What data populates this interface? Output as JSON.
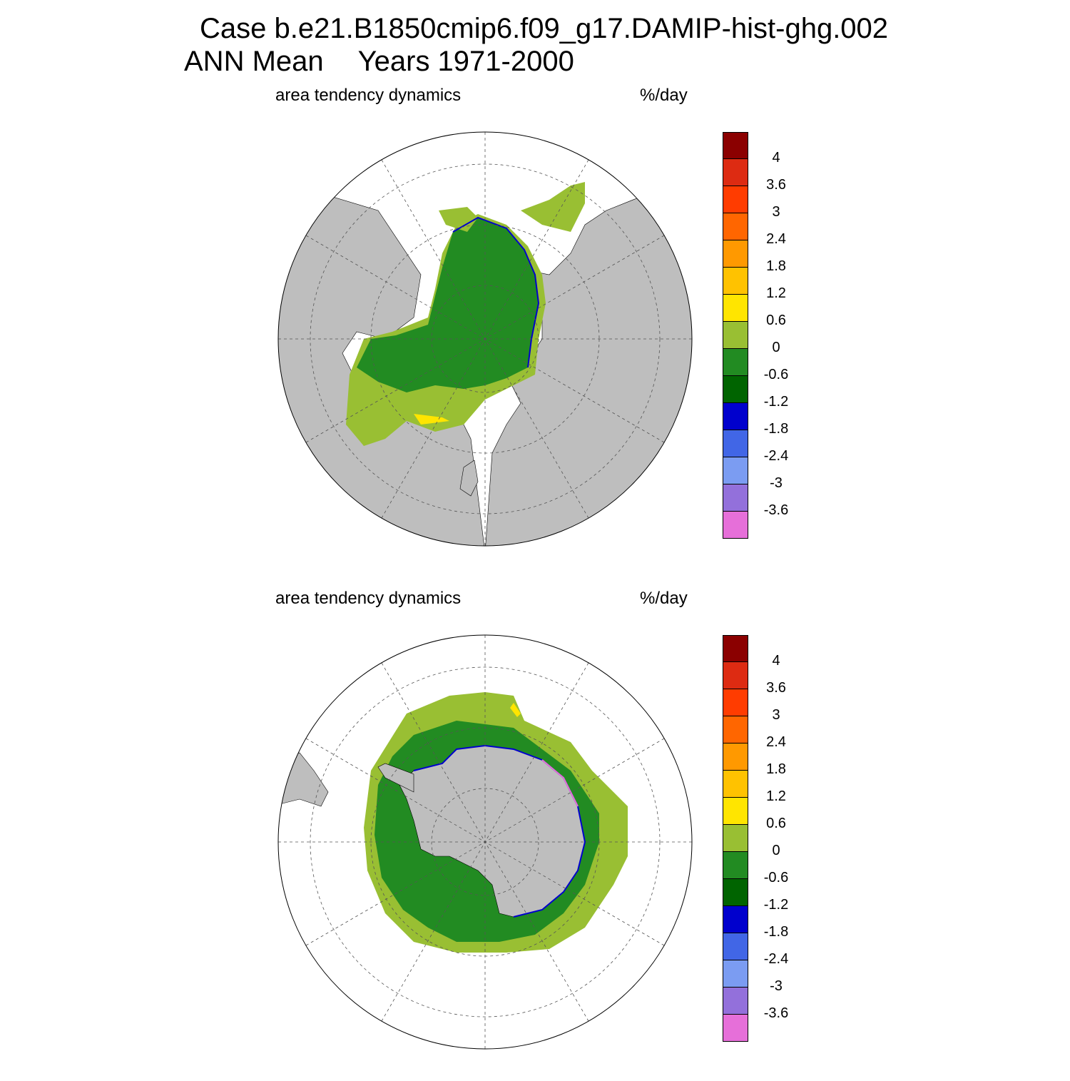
{
  "title": {
    "case_line": "Case b.e21.B1850cmip6.f09_g17.DAMIP-hist-ghg.002",
    "season": "ANN Mean",
    "years": "Years 1971-2000"
  },
  "panels": [
    {
      "hemisphere": "north",
      "left_string": "area tendency dynamics",
      "right_string": "%/day"
    },
    {
      "hemisphere": "south",
      "left_string": "area tendency dynamics",
      "right_string": "%/day"
    }
  ],
  "colorbar": {
    "colors": [
      "#8b0000",
      "#dd2b12",
      "#ff3c00",
      "#ff6600",
      "#ff9900",
      "#ffc200",
      "#ffe500",
      "#99bf33",
      "#228b22",
      "#006400",
      "#0000cd",
      "#4166e6",
      "#7b9cf2",
      "#9370db",
      "#e66fd9"
    ],
    "labels": [
      "4",
      "3.6",
      "3",
      "2.4",
      "1.8",
      "1.2",
      "0.6",
      "0",
      "-0.6",
      "-1.2",
      "-1.8",
      "-2.4",
      "-3",
      "-3.6"
    ]
  },
  "map_colors": {
    "land": "#bebebe",
    "ocean": "#ffffff",
    "ice_light": "#99bf33",
    "ice_mid": "#228b22",
    "ice_dark": "#006400",
    "edge_blue": "#0000cd",
    "edge_pink": "#e66fd9",
    "spot_yellow": "#ffe500"
  }
}
